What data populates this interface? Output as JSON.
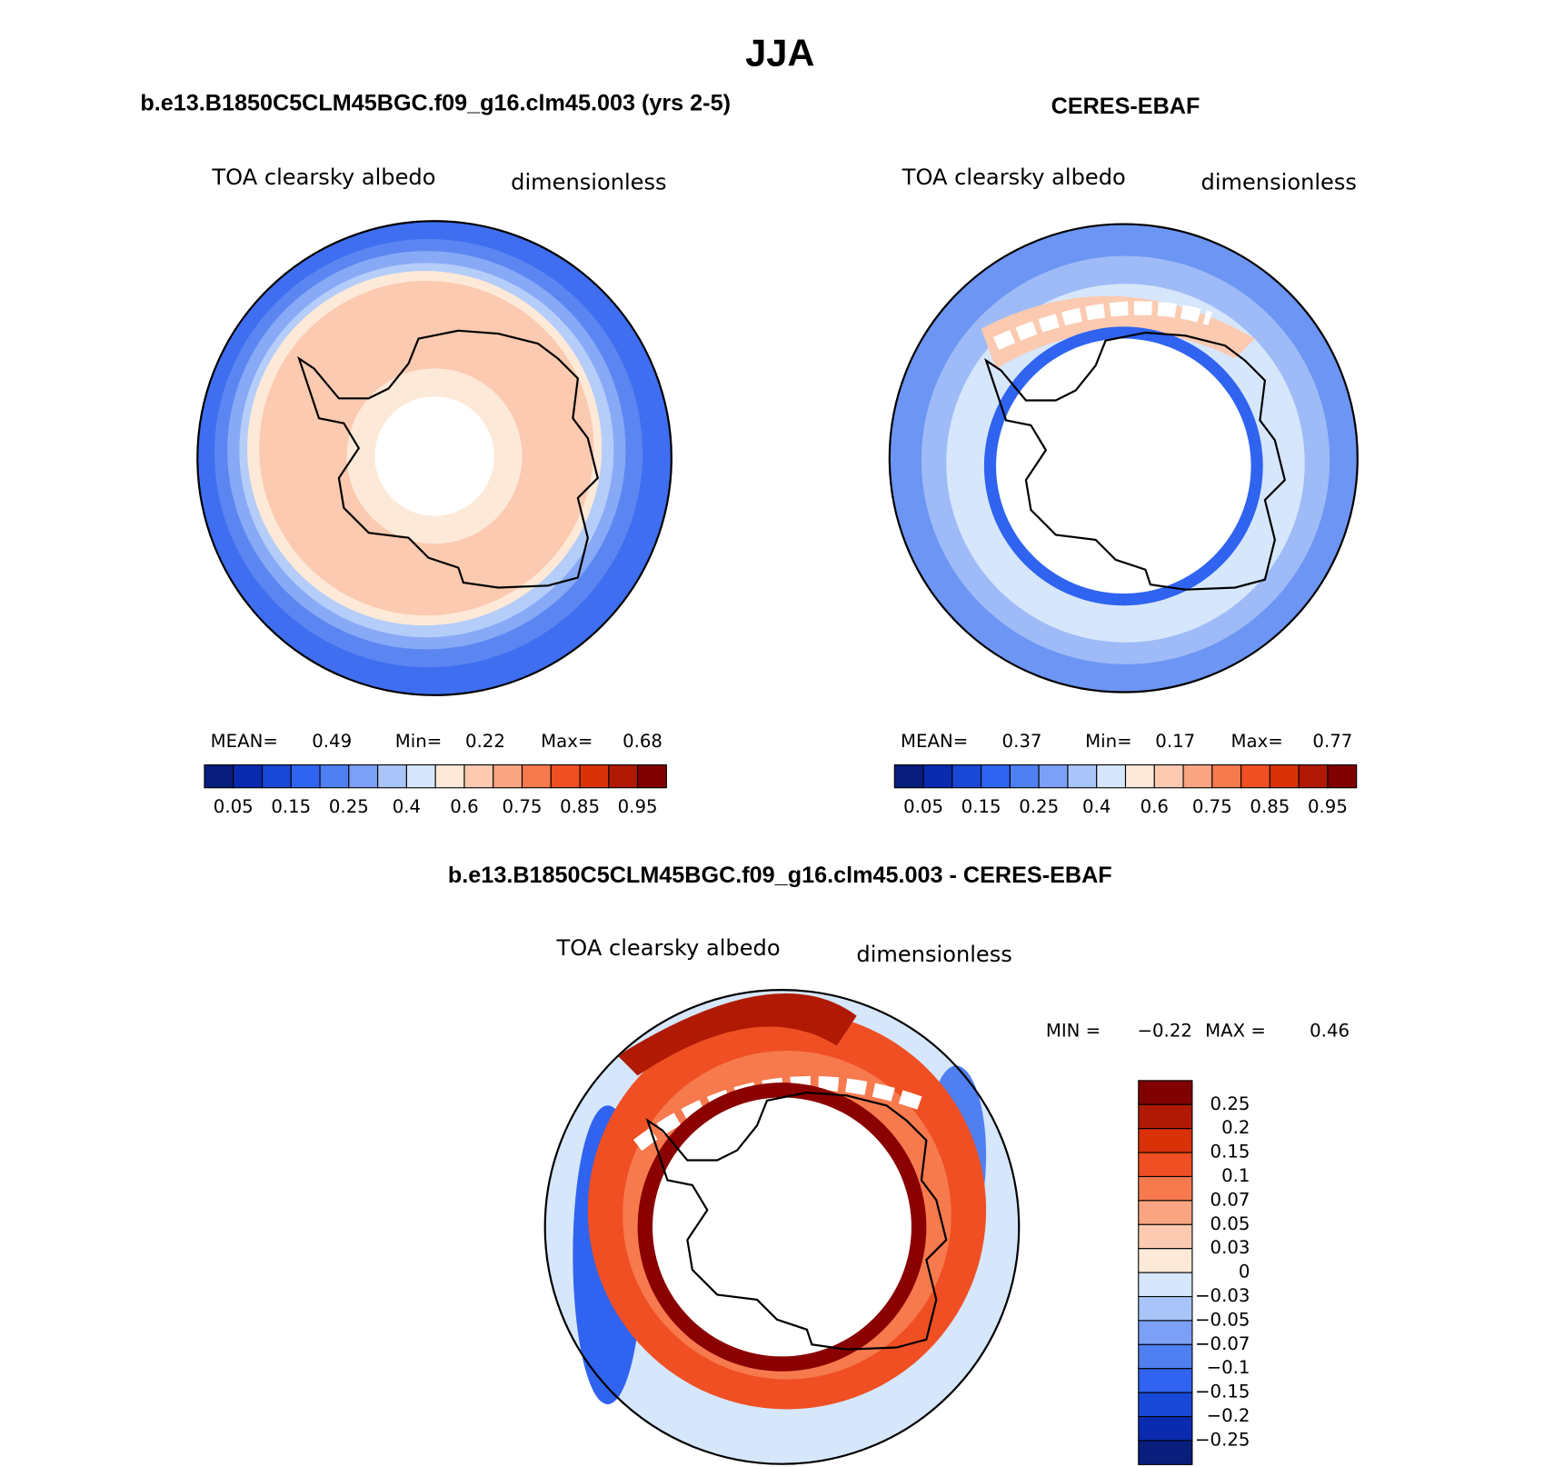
{
  "title": "JJA",
  "panels": [
    {
      "subtitle": "b.e13.B1850C5CLM45BGC.f09_g16.clm45.003 (yrs 2-5)",
      "variable": "TOA clearsky albedo",
      "units": "dimensionless",
      "stats": [
        {
          "label": "MEAN=",
          "value": "0.49"
        },
        {
          "label": "Min=",
          "value": "0.22"
        },
        {
          "label": "Max=",
          "value": "0.68"
        }
      ],
      "colorbar_labels": [
        "0.05",
        "0.15",
        "0.25",
        "0.4",
        "0.6",
        "0.75",
        "0.85",
        "0.95"
      ]
    },
    {
      "subtitle": "CERES-EBAF",
      "variable": "TOA clearsky albedo",
      "units": "dimensionless",
      "stats": [
        {
          "label": "MEAN=",
          "value": "0.37"
        },
        {
          "label": "Min=",
          "value": "0.17"
        },
        {
          "label": "Max=",
          "value": "0.77"
        }
      ],
      "colorbar_labels": [
        "0.05",
        "0.15",
        "0.25",
        "0.4",
        "0.6",
        "0.75",
        "0.85",
        "0.95"
      ]
    },
    {
      "subtitle": "b.e13.B1850C5CLM45BGC.f09_g16.clm45.003 - CERES-EBAF",
      "variable": "TOA clearsky albedo",
      "units": "dimensionless",
      "stats": [
        {
          "label": "MIN =",
          "value": "−0.22"
        },
        {
          "label": "MAX =",
          "value": "0.46"
        }
      ],
      "colorbar_labels": [
        "0.25",
        "0.2",
        "0.15",
        "0.1",
        "0.07",
        "0.05",
        "0.03",
        "0",
        "−0.03",
        "−0.05",
        "−0.07",
        "−0.1",
        "−0.15",
        "−0.2",
        "−0.25"
      ]
    }
  ]
}
